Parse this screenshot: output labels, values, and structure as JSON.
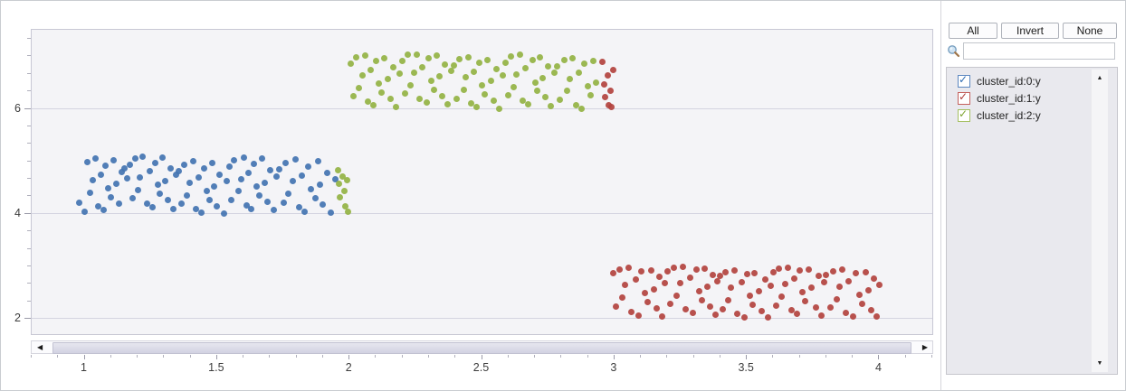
{
  "filter_panel": {
    "buttons": [
      {
        "label": "All"
      },
      {
        "label": "Invert"
      },
      {
        "label": "None"
      }
    ],
    "search": {
      "value": "",
      "placeholder": ""
    },
    "items": [
      {
        "label": "cluster_id:0:y",
        "checked": true,
        "box_border": "#5c87c0",
        "check_color": "#2f6cb2"
      },
      {
        "label": "cluster_id:1:y",
        "checked": true,
        "box_border": "#c4605c",
        "check_color": "#ad3a38"
      },
      {
        "label": "cluster_id:2:y",
        "checked": true,
        "box_border": "#a4bf60",
        "check_color": "#7da32e"
      }
    ]
  },
  "chart_data": {
    "type": "scatter",
    "grid": "horizontal-major",
    "legend_position": "right-panel",
    "x_axis": {
      "min": 0.8,
      "max": 4.2,
      "major_ticks": [
        1,
        1.5,
        2,
        2.5,
        3,
        3.5,
        4
      ],
      "tick_labels": [
        "1",
        "1.5",
        "2",
        "2.5",
        "3",
        "3.5",
        "4"
      ],
      "minor_step": 0.1
    },
    "y_axis": {
      "min": 1.69,
      "max": 7.49,
      "major_ticks": [
        2,
        4,
        6
      ],
      "tick_labels": [
        "2",
        "4",
        "6"
      ],
      "minor_step": 0.3333,
      "minor_anchor": 2
    },
    "series": [
      {
        "name": "cluster_id:0:y",
        "color": "#4273b1",
        "points": [
          [
            0.98,
            4.19
          ],
          [
            1.0,
            4.02
          ],
          [
            1.01,
            4.97
          ],
          [
            1.02,
            4.38
          ],
          [
            1.03,
            4.62
          ],
          [
            1.04,
            5.04
          ],
          [
            1.05,
            4.12
          ],
          [
            1.06,
            4.73
          ],
          [
            1.07,
            4.05
          ],
          [
            1.08,
            4.9
          ],
          [
            1.09,
            4.47
          ],
          [
            1.1,
            4.3
          ],
          [
            1.11,
            5.0
          ],
          [
            1.12,
            4.55
          ],
          [
            1.13,
            4.18
          ],
          [
            1.14,
            4.78
          ],
          [
            1.15,
            4.85
          ],
          [
            1.16,
            4.66
          ],
          [
            1.17,
            4.91
          ],
          [
            1.18,
            4.28
          ],
          [
            1.19,
            5.03
          ],
          [
            1.2,
            4.44
          ],
          [
            1.21,
            4.68
          ],
          [
            1.22,
            5.07
          ],
          [
            1.235,
            4.18
          ],
          [
            1.245,
            4.79
          ],
          [
            1.255,
            4.11
          ],
          [
            1.265,
            4.96
          ],
          [
            1.275,
            4.53
          ],
          [
            1.285,
            4.36
          ],
          [
            1.295,
            5.05
          ],
          [
            1.305,
            4.61
          ],
          [
            1.315,
            4.24
          ],
          [
            1.325,
            4.84
          ],
          [
            1.335,
            4.08
          ],
          [
            1.345,
            4.72
          ],
          [
            1.355,
            4.8
          ],
          [
            1.365,
            4.17
          ],
          [
            1.375,
            4.92
          ],
          [
            1.385,
            4.33
          ],
          [
            1.395,
            4.57
          ],
          [
            1.41,
            4.99
          ],
          [
            1.42,
            4.07
          ],
          [
            1.43,
            4.68
          ],
          [
            1.44,
            4.0
          ],
          [
            1.45,
            4.85
          ],
          [
            1.46,
            4.42
          ],
          [
            1.47,
            4.25
          ],
          [
            1.48,
            4.95
          ],
          [
            1.49,
            4.5
          ],
          [
            1.5,
            4.13
          ],
          [
            1.51,
            4.73
          ],
          [
            1.525,
            3.99
          ],
          [
            1.535,
            4.61
          ],
          [
            1.545,
            4.88
          ],
          [
            1.555,
            4.25
          ],
          [
            1.565,
            5.0
          ],
          [
            1.58,
            4.41
          ],
          [
            1.59,
            4.65
          ],
          [
            1.6,
            5.06
          ],
          [
            1.61,
            4.15
          ],
          [
            1.62,
            4.76
          ],
          [
            1.63,
            4.08
          ],
          [
            1.64,
            4.93
          ],
          [
            1.65,
            4.5
          ],
          [
            1.66,
            4.33
          ],
          [
            1.67,
            5.03
          ],
          [
            1.68,
            4.58
          ],
          [
            1.69,
            4.21
          ],
          [
            1.7,
            4.81
          ],
          [
            1.715,
            4.05
          ],
          [
            1.725,
            4.69
          ],
          [
            1.735,
            4.83
          ],
          [
            1.75,
            4.2
          ],
          [
            1.76,
            4.95
          ],
          [
            1.77,
            4.36
          ],
          [
            1.785,
            4.6
          ],
          [
            1.795,
            5.02
          ],
          [
            1.81,
            4.1
          ],
          [
            1.82,
            4.71
          ],
          [
            1.83,
            4.03
          ],
          [
            1.845,
            4.88
          ],
          [
            1.855,
            4.45
          ],
          [
            1.87,
            4.28
          ],
          [
            1.88,
            4.98
          ],
          [
            1.89,
            4.53
          ],
          [
            1.9,
            4.16
          ],
          [
            1.915,
            4.76
          ],
          [
            1.93,
            4.0
          ],
          [
            1.945,
            4.64
          ]
        ]
      },
      {
        "name": "cluster_id:1:y",
        "color": "#b2423e",
        "points": [
          [
            2.955,
            6.88
          ],
          [
            2.96,
            6.45
          ],
          [
            2.965,
            6.2
          ],
          [
            2.975,
            6.62
          ],
          [
            2.98,
            6.05
          ],
          [
            2.985,
            6.32
          ],
          [
            2.99,
            6.01
          ],
          [
            2.995,
            6.72
          ],
          [
            2.995,
            2.85
          ],
          [
            3.005,
            2.22
          ],
          [
            3.02,
            2.92
          ],
          [
            3.03,
            2.38
          ],
          [
            3.04,
            2.62
          ],
          [
            3.055,
            2.95
          ],
          [
            3.065,
            2.12
          ],
          [
            3.08,
            2.73
          ],
          [
            3.09,
            2.05
          ],
          [
            3.1,
            2.88
          ],
          [
            3.115,
            2.47
          ],
          [
            3.125,
            2.3
          ],
          [
            3.14,
            2.9
          ],
          [
            3.15,
            2.55
          ],
          [
            3.16,
            2.18
          ],
          [
            3.17,
            2.78
          ],
          [
            3.18,
            2.02
          ],
          [
            3.19,
            2.66
          ],
          [
            3.2,
            2.89
          ],
          [
            3.21,
            2.26
          ],
          [
            3.225,
            2.96
          ],
          [
            3.235,
            2.42
          ],
          [
            3.25,
            2.66
          ],
          [
            3.26,
            2.97
          ],
          [
            3.27,
            2.16
          ],
          [
            3.285,
            2.77
          ],
          [
            3.295,
            2.09
          ],
          [
            3.31,
            2.92
          ],
          [
            3.32,
            2.51
          ],
          [
            3.33,
            2.34
          ],
          [
            3.34,
            2.94
          ],
          [
            3.35,
            2.59
          ],
          [
            3.36,
            2.22
          ],
          [
            3.37,
            2.82
          ],
          [
            3.38,
            2.06
          ],
          [
            3.39,
            2.7
          ],
          [
            3.4,
            2.8
          ],
          [
            3.41,
            2.17
          ],
          [
            3.42,
            2.87
          ],
          [
            3.43,
            2.33
          ],
          [
            3.44,
            2.57
          ],
          [
            3.455,
            2.9
          ],
          [
            3.465,
            2.07
          ],
          [
            3.48,
            2.68
          ],
          [
            3.49,
            2.0
          ],
          [
            3.5,
            2.83
          ],
          [
            3.51,
            2.42
          ],
          [
            3.52,
            2.25
          ],
          [
            3.53,
            2.85
          ],
          [
            3.545,
            2.5
          ],
          [
            3.555,
            2.13
          ],
          [
            3.57,
            2.73
          ],
          [
            3.58,
            2.01
          ],
          [
            3.59,
            2.61
          ],
          [
            3.6,
            2.87
          ],
          [
            3.61,
            2.24
          ],
          [
            3.62,
            2.94
          ],
          [
            3.63,
            2.4
          ],
          [
            3.645,
            2.64
          ],
          [
            3.655,
            2.96
          ],
          [
            3.67,
            2.14
          ],
          [
            3.68,
            2.75
          ],
          [
            3.69,
            2.07
          ],
          [
            3.7,
            2.9
          ],
          [
            3.71,
            2.49
          ],
          [
            3.72,
            2.32
          ],
          [
            3.735,
            2.92
          ],
          [
            3.745,
            2.57
          ],
          [
            3.76,
            2.2
          ],
          [
            3.77,
            2.8
          ],
          [
            3.78,
            2.04
          ],
          [
            3.79,
            2.68
          ],
          [
            3.8,
            2.82
          ],
          [
            3.815,
            2.19
          ],
          [
            3.825,
            2.89
          ],
          [
            3.84,
            2.35
          ],
          [
            3.85,
            2.59
          ],
          [
            3.86,
            2.92
          ],
          [
            3.875,
            2.09
          ],
          [
            3.885,
            2.7
          ],
          [
            3.9,
            2.02
          ],
          [
            3.91,
            2.85
          ],
          [
            3.925,
            2.44
          ],
          [
            3.935,
            2.27
          ],
          [
            3.95,
            2.87
          ],
          [
            3.96,
            2.52
          ],
          [
            3.97,
            2.15
          ],
          [
            3.98,
            2.75
          ],
          [
            3.99,
            2.03
          ],
          [
            4.0,
            2.63
          ]
        ]
      },
      {
        "name": "cluster_id:2:y",
        "color": "#92b243",
        "points": [
          [
            1.955,
            4.82
          ],
          [
            1.96,
            4.55
          ],
          [
            1.965,
            4.3
          ],
          [
            1.975,
            4.7
          ],
          [
            1.98,
            4.42
          ],
          [
            1.985,
            4.12
          ],
          [
            1.99,
            4.62
          ],
          [
            1.995,
            4.02
          ],
          [
            2.005,
            6.85
          ],
          [
            2.015,
            6.22
          ],
          [
            2.025,
            6.97
          ],
          [
            2.035,
            6.38
          ],
          [
            2.05,
            6.62
          ],
          [
            2.06,
            7.0
          ],
          [
            2.07,
            6.12
          ],
          [
            2.08,
            6.73
          ],
          [
            2.09,
            6.05
          ],
          [
            2.1,
            6.9
          ],
          [
            2.11,
            6.47
          ],
          [
            2.12,
            6.3
          ],
          [
            2.13,
            6.95
          ],
          [
            2.145,
            6.55
          ],
          [
            2.155,
            6.18
          ],
          [
            2.165,
            6.78
          ],
          [
            2.175,
            6.02
          ],
          [
            2.19,
            6.66
          ],
          [
            2.2,
            6.9
          ],
          [
            2.21,
            6.27
          ],
          [
            2.22,
            7.02
          ],
          [
            2.23,
            6.43
          ],
          [
            2.245,
            6.67
          ],
          [
            2.255,
            7.01
          ],
          [
            2.265,
            6.17
          ],
          [
            2.275,
            6.78
          ],
          [
            2.29,
            6.1
          ],
          [
            2.3,
            6.95
          ],
          [
            2.31,
            6.52
          ],
          [
            2.32,
            6.35
          ],
          [
            2.33,
            7.0
          ],
          [
            2.34,
            6.6
          ],
          [
            2.35,
            6.23
          ],
          [
            2.36,
            6.83
          ],
          [
            2.37,
            6.07
          ],
          [
            2.385,
            6.71
          ],
          [
            2.395,
            6.81
          ],
          [
            2.405,
            6.18
          ],
          [
            2.415,
            6.93
          ],
          [
            2.43,
            6.34
          ],
          [
            2.44,
            6.58
          ],
          [
            2.45,
            6.96
          ],
          [
            2.46,
            6.08
          ],
          [
            2.47,
            6.69
          ],
          [
            2.48,
            6.01
          ],
          [
            2.49,
            6.86
          ],
          [
            2.5,
            6.43
          ],
          [
            2.51,
            6.26
          ],
          [
            2.52,
            6.91
          ],
          [
            2.535,
            6.51
          ],
          [
            2.545,
            6.14
          ],
          [
            2.555,
            6.74
          ],
          [
            2.565,
            5.98
          ],
          [
            2.58,
            6.62
          ],
          [
            2.59,
            6.87
          ],
          [
            2.6,
            6.24
          ],
          [
            2.61,
            6.99
          ],
          [
            2.62,
            6.4
          ],
          [
            2.63,
            6.64
          ],
          [
            2.645,
            7.02
          ],
          [
            2.655,
            6.14
          ],
          [
            2.665,
            6.75
          ],
          [
            2.675,
            6.07
          ],
          [
            2.69,
            6.92
          ],
          [
            2.7,
            6.49
          ],
          [
            2.71,
            6.32
          ],
          [
            2.72,
            6.97
          ],
          [
            2.73,
            6.57
          ],
          [
            2.74,
            6.2
          ],
          [
            2.75,
            6.8
          ],
          [
            2.76,
            6.04
          ],
          [
            2.775,
            6.68
          ],
          [
            2.785,
            6.79
          ],
          [
            2.795,
            6.16
          ],
          [
            2.81,
            6.91
          ],
          [
            2.82,
            6.32
          ],
          [
            2.83,
            6.56
          ],
          [
            2.84,
            6.94
          ],
          [
            2.855,
            6.06
          ],
          [
            2.865,
            6.67
          ],
          [
            2.875,
            5.99
          ],
          [
            2.885,
            6.84
          ],
          [
            2.9,
            6.41
          ],
          [
            2.91,
            6.24
          ],
          [
            2.92,
            6.89
          ],
          [
            2.93,
            6.49
          ]
        ]
      }
    ]
  }
}
